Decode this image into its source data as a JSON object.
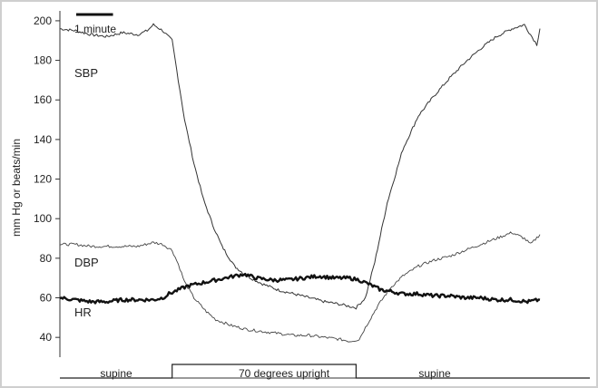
{
  "chart_data": {
    "type": "line",
    "title": "",
    "xlabel": "",
    "ylabel": "mm Hg  or  beats/min",
    "ylim": [
      30,
      205
    ],
    "xlim": [
      0,
      17
    ],
    "x_unit": "minutes",
    "yticks": [
      40,
      60,
      80,
      100,
      120,
      140,
      160,
      180,
      200
    ],
    "scale_bar": {
      "label": "1 minute",
      "minutes": 1
    },
    "phases": [
      {
        "label": "supine",
        "start": 0,
        "end": 3.6,
        "level": "low"
      },
      {
        "label": "70 degrees upright",
        "start": 3.6,
        "end": 9.5,
        "level": "high"
      },
      {
        "label": "supine",
        "start": 9.5,
        "end": 15.4,
        "level": "low"
      }
    ],
    "series": [
      {
        "name": "SBP",
        "stroke": "#333333",
        "width": 1.0,
        "x": [
          0,
          0.5,
          1.0,
          1.5,
          2.0,
          2.5,
          2.8,
          3.0,
          3.3,
          3.6,
          3.8,
          4.0,
          4.3,
          4.6,
          4.9,
          5.2,
          5.6,
          6.0,
          6.5,
          7.0,
          7.5,
          8.0,
          8.5,
          8.9,
          9.2,
          9.5,
          9.8,
          10.1,
          10.5,
          11.0,
          11.5,
          12.0,
          12.5,
          13.0,
          13.5,
          14.0,
          14.5,
          14.9,
          15.1,
          15.3,
          15.4
        ],
        "values": [
          196,
          195,
          193,
          192,
          194,
          193,
          195,
          198,
          195,
          190,
          170,
          150,
          128,
          110,
          97,
          86,
          76,
          71,
          67,
          64,
          62,
          60,
          58,
          57,
          56,
          55,
          60,
          78,
          108,
          135,
          152,
          162,
          171,
          179,
          186,
          192,
          196,
          198,
          193,
          188,
          196
        ]
      },
      {
        "name": "DBP",
        "stroke": "#444444",
        "width": 0.9,
        "x": [
          0,
          0.5,
          1.0,
          1.5,
          2.0,
          2.5,
          3.0,
          3.3,
          3.6,
          3.8,
          4.0,
          4.3,
          4.7,
          5.0,
          5.5,
          6.0,
          6.5,
          7.0,
          7.5,
          8.0,
          8.5,
          9.0,
          9.3,
          9.6,
          9.8,
          10.2,
          10.6,
          11.0,
          11.5,
          12.0,
          12.5,
          13.0,
          13.5,
          14.0,
          14.5,
          14.9,
          15.1,
          15.4
        ],
        "values": [
          87,
          87,
          86,
          86,
          86,
          86,
          88,
          87,
          84,
          77,
          68,
          60,
          53,
          49,
          46,
          44,
          43,
          42,
          41,
          41,
          40,
          39,
          38,
          39,
          45,
          56,
          65,
          71,
          76,
          79,
          81,
          84,
          87,
          90,
          93,
          90,
          87,
          92
        ]
      },
      {
        "name": "HR",
        "stroke": "#111111",
        "width": 2.4,
        "x": [
          0,
          0.5,
          1.0,
          1.5,
          2.0,
          2.5,
          3.0,
          3.3,
          3.5,
          3.8,
          4.1,
          4.4,
          4.7,
          5.0,
          5.3,
          5.6,
          5.9,
          6.3,
          6.8,
          7.3,
          7.8,
          8.3,
          8.8,
          9.3,
          9.6,
          9.9,
          10.3,
          10.7,
          11.0,
          11.5,
          12.0,
          12.5,
          13.0,
          13.5,
          14.0,
          14.5,
          15.0,
          15.4
        ],
        "values": [
          60,
          59,
          58,
          58,
          59,
          59,
          59,
          60,
          62,
          64,
          66,
          67,
          68,
          69,
          70,
          71,
          72,
          70,
          69,
          69,
          70,
          71,
          70,
          70,
          69,
          67,
          64,
          63,
          62,
          62,
          61,
          61,
          60,
          60,
          59,
          59,
          58,
          59
        ]
      }
    ],
    "series_labels": [
      {
        "text": "SBP",
        "series": "SBP"
      },
      {
        "text": "DBP",
        "series": "DBP"
      },
      {
        "text": "HR",
        "series": "HR"
      }
    ]
  }
}
